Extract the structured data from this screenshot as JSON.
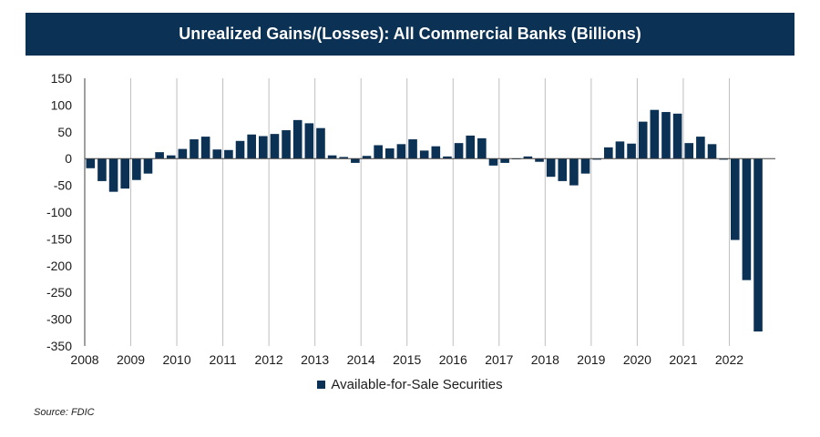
{
  "colors": {
    "bar": "#0b3155",
    "title_bg": "#0b3155",
    "grid": "#bfbfbf",
    "axis": "#404040"
  },
  "chart_data": {
    "type": "bar",
    "title": "Unrealized Gains/(Losses): All Commercial Banks (Billions)",
    "xlabel": "",
    "ylabel": "",
    "ylim": [
      -350,
      150
    ],
    "yticks": [
      150,
      100,
      50,
      0,
      -50,
      -100,
      -150,
      -200,
      -250,
      -300,
      -350
    ],
    "year_labels": [
      "2008",
      "2009",
      "2010",
      "2011",
      "2012",
      "2013",
      "2014",
      "2015",
      "2016",
      "2017",
      "2018",
      "2019",
      "2020",
      "2021",
      "2022"
    ],
    "legend": "Available-for-Sale Securities",
    "grid": "vertical",
    "categories": [
      "2008Q1",
      "2008Q2",
      "2008Q3",
      "2008Q4",
      "2009Q1",
      "2009Q2",
      "2009Q3",
      "2009Q4",
      "2010Q1",
      "2010Q2",
      "2010Q3",
      "2010Q4",
      "2011Q1",
      "2011Q2",
      "2011Q3",
      "2011Q4",
      "2012Q1",
      "2012Q2",
      "2012Q3",
      "2012Q4",
      "2013Q1",
      "2013Q2",
      "2013Q3",
      "2013Q4",
      "2014Q1",
      "2014Q2",
      "2014Q3",
      "2014Q4",
      "2015Q1",
      "2015Q2",
      "2015Q3",
      "2015Q4",
      "2016Q1",
      "2016Q2",
      "2016Q3",
      "2016Q4",
      "2017Q1",
      "2017Q2",
      "2017Q3",
      "2017Q4",
      "2018Q1",
      "2018Q2",
      "2018Q3",
      "2018Q4",
      "2019Q1",
      "2019Q2",
      "2019Q3",
      "2019Q4",
      "2020Q1",
      "2020Q2",
      "2020Q3",
      "2020Q4",
      "2021Q1",
      "2021Q2",
      "2021Q3",
      "2021Q4",
      "2022Q1",
      "2022Q2",
      "2022Q3"
    ],
    "series": [
      {
        "name": "Available-for-Sale Securities",
        "values": [
          -18,
          -42,
          -62,
          -56,
          -40,
          -28,
          12,
          6,
          18,
          36,
          41,
          17,
          16,
          33,
          45,
          42,
          46,
          53,
          72,
          66,
          57,
          6,
          3,
          -8,
          5,
          25,
          19,
          27,
          36,
          15,
          23,
          4,
          29,
          43,
          38,
          -13,
          -8,
          0,
          4,
          -6,
          -34,
          -42,
          -50,
          -28,
          -2,
          21,
          32,
          28,
          69,
          91,
          87,
          84,
          29,
          41,
          27,
          -2,
          -152,
          -227,
          -323
        ]
      }
    ]
  },
  "source": "Source: FDIC"
}
